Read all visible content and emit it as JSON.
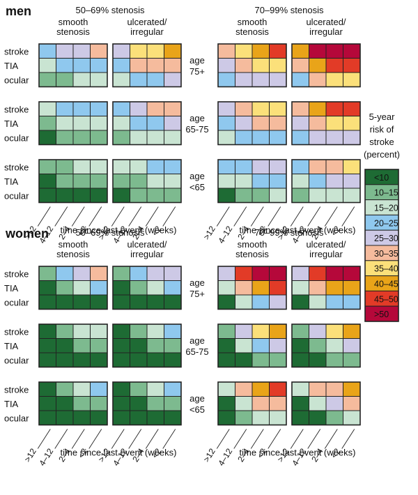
{
  "chart_data": {
    "type": "heatmap",
    "title": "",
    "xlabel": "time since last event (weeks)",
    "x_categories": [
      ">12",
      "4–12",
      "2–4",
      "<2"
    ],
    "row_labels": [
      "stroke",
      "TIA",
      "ocular"
    ],
    "age_groups": [
      "age 75+",
      "age 65-75",
      "age <65"
    ],
    "stenosis_groups": [
      "50–69% stenosis",
      "70–99% stenosis"
    ],
    "plaque_types": [
      "smooth stenosis",
      "ulcerated/ irregular"
    ],
    "legend": {
      "title": "5-year risk of stroke (percent)",
      "levels": [
        {
          "label": "<10",
          "color": "#1e6b34"
        },
        {
          "label": "10–15",
          "color": "#7dba8f"
        },
        {
          "label": "15–20",
          "color": "#c9e4d2"
        },
        {
          "label": "20–25",
          "color": "#8fc8ee"
        },
        {
          "label": "25–30",
          "color": "#cdc9e6"
        },
        {
          "label": "30–35",
          "color": "#f5bb9d"
        },
        {
          "label": "35–40",
          "color": "#fbe07a"
        },
        {
          "label": "40–45",
          "color": "#e9a419"
        },
        {
          "label": "45–50",
          "color": "#e23b27"
        },
        {
          "label": ">50",
          "color": "#b5083a"
        }
      ]
    },
    "sections": [
      {
        "sex": "men",
        "groups": [
          {
            "age": "age 75+",
            "panels": [
              [
                [
                  3,
                  4,
                  4,
                  5
                ],
                [
                  2,
                  3,
                  3,
                  3
                ],
                [
                  1,
                  1,
                  2,
                  2
                ]
              ],
              [
                [
                  4,
                  6,
                  6,
                  7
                ],
                [
                  3,
                  5,
                  5,
                  5
                ],
                [
                  2,
                  3,
                  3,
                  4
                ]
              ],
              [
                [
                  5,
                  6,
                  7,
                  8
                ],
                [
                  4,
                  5,
                  6,
                  6
                ],
                [
                  3,
                  4,
                  4,
                  4
                ]
              ],
              [
                [
                  7,
                  9,
                  9,
                  9
                ],
                [
                  5,
                  7,
                  8,
                  8
                ],
                [
                  3,
                  5,
                  6,
                  6
                ]
              ]
            ]
          },
          {
            "age": "age 65-75",
            "panels": [
              [
                [
                  2,
                  3,
                  3,
                  3
                ],
                [
                  1,
                  2,
                  2,
                  2
                ],
                [
                  0,
                  1,
                  1,
                  1
                ]
              ],
              [
                [
                  3,
                  4,
                  5,
                  5
                ],
                [
                  2,
                  3,
                  3,
                  4
                ],
                [
                  1,
                  2,
                  2,
                  2
                ]
              ],
              [
                [
                  4,
                  5,
                  6,
                  6
                ],
                [
                  3,
                  4,
                  5,
                  5
                ],
                [
                  2,
                  3,
                  3,
                  3
                ]
              ],
              [
                [
                  5,
                  7,
                  8,
                  8
                ],
                [
                  4,
                  5,
                  6,
                  6
                ],
                [
                  3,
                  4,
                  4,
                  4
                ]
              ]
            ]
          },
          {
            "age": "age <65",
            "panels": [
              [
                [
                  1,
                  1,
                  2,
                  2
                ],
                [
                  0,
                  1,
                  1,
                  1
                ],
                [
                  0,
                  0,
                  0,
                  0
                ]
              ],
              [
                [
                  2,
                  2,
                  3,
                  3
                ],
                [
                  1,
                  1,
                  2,
                  2
                ],
                [
                  0,
                  1,
                  1,
                  1
                ]
              ],
              [
                [
                  3,
                  3,
                  4,
                  4
                ],
                [
                  2,
                  2,
                  3,
                  3
                ],
                [
                  0,
                  1,
                  1,
                  2
                ]
              ],
              [
                [
                  3,
                  5,
                  5,
                  6
                ],
                [
                  2,
                  3,
                  4,
                  4
                ],
                [
                  1,
                  2,
                  2,
                  2
                ]
              ]
            ]
          }
        ]
      },
      {
        "sex": "women",
        "groups": [
          {
            "age": "age 75+",
            "panels": [
              [
                [
                  1,
                  3,
                  4,
                  5
                ],
                [
                  0,
                  1,
                  2,
                  3
                ],
                [
                  0,
                  0,
                  0,
                  0
                ]
              ],
              [
                [
                  1,
                  3,
                  4,
                  4
                ],
                [
                  0,
                  1,
                  2,
                  3
                ],
                [
                  0,
                  0,
                  0,
                  0
                ]
              ],
              [
                [
                  4,
                  8,
                  9,
                  9
                ],
                [
                  2,
                  5,
                  7,
                  8
                ],
                [
                  0,
                  2,
                  3,
                  4
                ]
              ],
              [
                [
                  4,
                  8,
                  9,
                  9
                ],
                [
                  2,
                  5,
                  7,
                  7
                ],
                [
                  0,
                  2,
                  3,
                  3
                ]
              ]
            ]
          },
          {
            "age": "age 65-75",
            "panels": [
              [
                [
                  0,
                  1,
                  2,
                  2
                ],
                [
                  0,
                  0,
                  1,
                  1
                ],
                [
                  0,
                  0,
                  0,
                  0
                ]
              ],
              [
                [
                  0,
                  1,
                  2,
                  3
                ],
                [
                  0,
                  0,
                  1,
                  1
                ],
                [
                  0,
                  0,
                  0,
                  0
                ]
              ],
              [
                [
                  1,
                  4,
                  6,
                  7
                ],
                [
                  0,
                  2,
                  3,
                  4
                ],
                [
                  0,
                  0,
                  1,
                  1
                ]
              ],
              [
                [
                  1,
                  4,
                  6,
                  7
                ],
                [
                  0,
                  1,
                  2,
                  4
                ],
                [
                  0,
                  0,
                  1,
                  1
                ]
              ]
            ]
          },
          {
            "age": "age <65",
            "panels": [
              [
                [
                  0,
                  1,
                  2,
                  3
                ],
                [
                  0,
                  0,
                  1,
                  1
                ],
                [
                  0,
                  0,
                  0,
                  0
                ]
              ],
              [
                [
                  0,
                  1,
                  2,
                  3
                ],
                [
                  0,
                  0,
                  1,
                  1
                ],
                [
                  0,
                  0,
                  0,
                  0
                ]
              ],
              [
                [
                  2,
                  5,
                  7,
                  8
                ],
                [
                  0,
                  2,
                  5,
                  5
                ],
                [
                  0,
                  1,
                  2,
                  2
                ]
              ],
              [
                [
                  2,
                  5,
                  5,
                  7
                ],
                [
                  0,
                  2,
                  4,
                  5
                ],
                [
                  0,
                  0,
                  1,
                  2
                ]
              ]
            ]
          }
        ]
      }
    ]
  }
}
